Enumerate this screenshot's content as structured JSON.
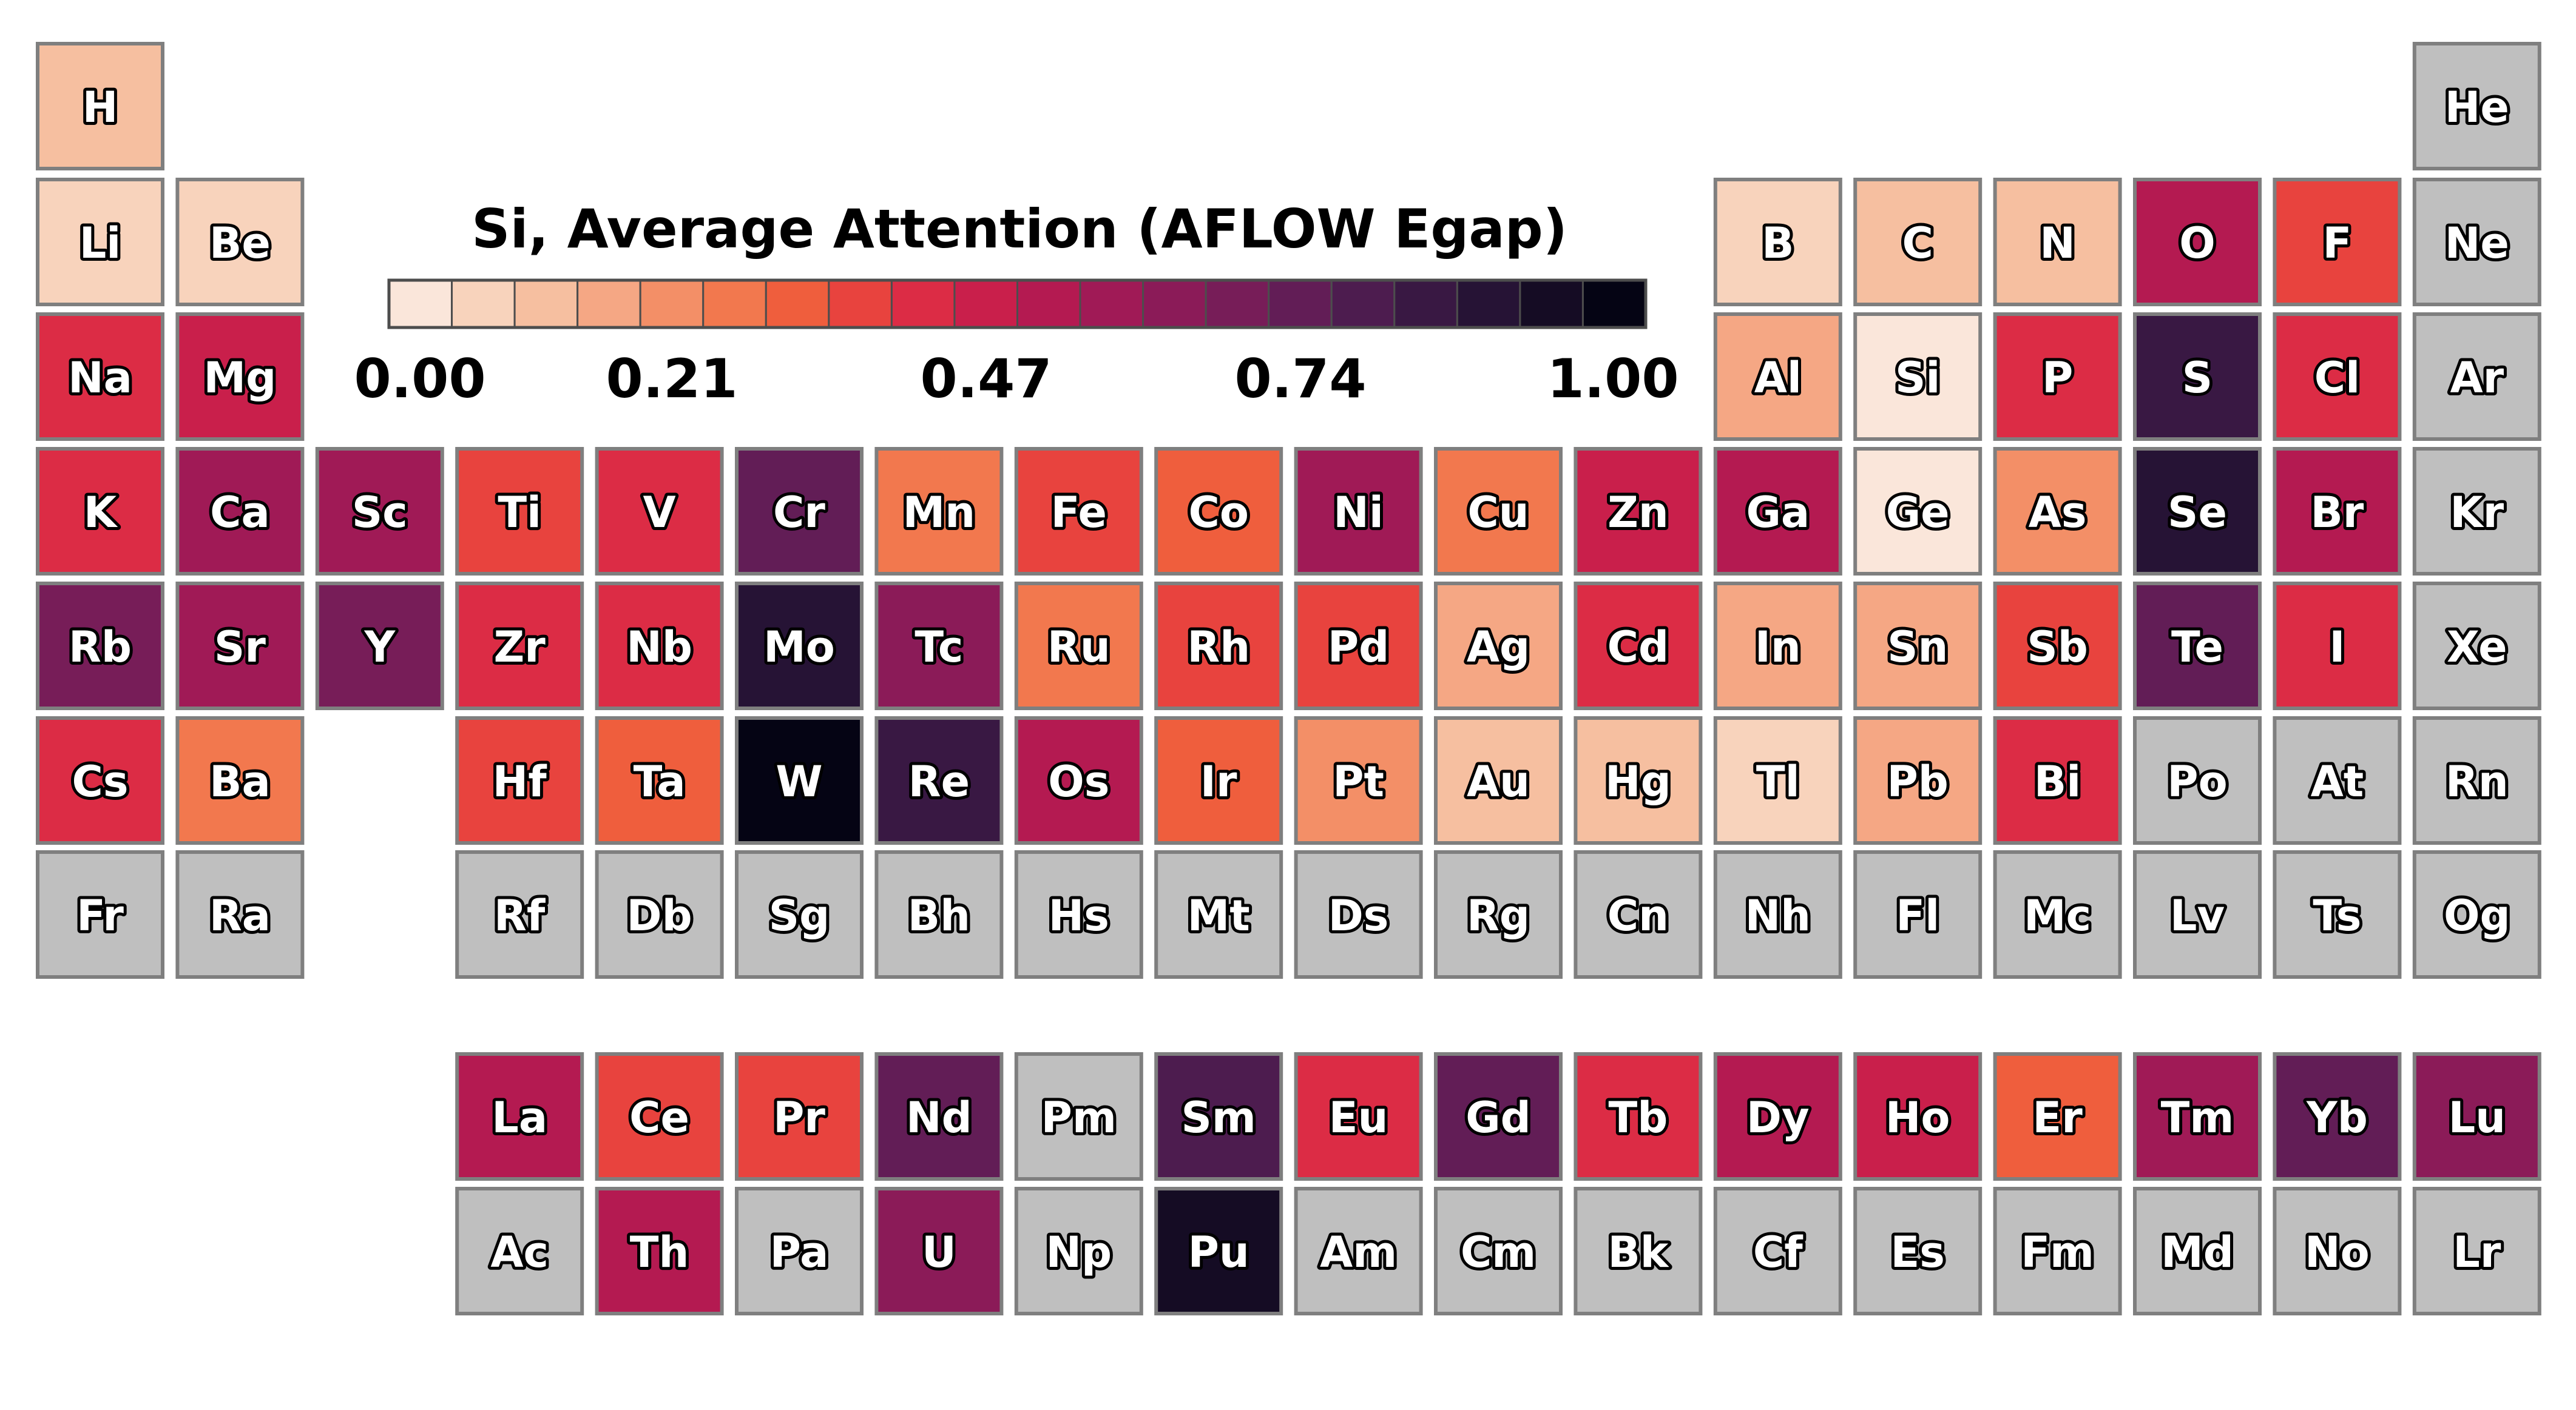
{
  "chart_data": {
    "type": "heatmap",
    "title": "Si, Average Attention (AFLOW Egap)",
    "colorbar": {
      "ticks": [
        "0.00",
        "0.21",
        "0.47",
        "0.74",
        "1.00"
      ],
      "tick_values": [
        0.0,
        0.21,
        0.47,
        0.74,
        1.0
      ],
      "range": [
        0.0,
        1.0
      ],
      "colors": [
        "#fae6da",
        "#f8d3bc",
        "#f6bfa0",
        "#f5a784",
        "#f38f67",
        "#f2784e",
        "#ef5e3d",
        "#e8433e",
        "#dc2c45",
        "#c91f4b",
        "#b41a51",
        "#a01a56",
        "#8b1b58",
        "#771d58",
        "#621d56",
        "#4d1c4f",
        "#391843",
        "#261335",
        "#150c24",
        "#050414"
      ]
    },
    "no_data_color": "#bfbfbf",
    "cells": [
      {
        "symbol": "H",
        "row": 1,
        "col": 1,
        "value": 0.12
      },
      {
        "symbol": "He",
        "row": 1,
        "col": 18,
        "value": null
      },
      {
        "symbol": "Li",
        "row": 2,
        "col": 1,
        "value": 0.06
      },
      {
        "symbol": "Be",
        "row": 2,
        "col": 2,
        "value": 0.05
      },
      {
        "symbol": "B",
        "row": 2,
        "col": 13,
        "value": 0.09
      },
      {
        "symbol": "C",
        "row": 2,
        "col": 14,
        "value": 0.14
      },
      {
        "symbol": "N",
        "row": 2,
        "col": 15,
        "value": 0.12
      },
      {
        "symbol": "O",
        "row": 2,
        "col": 16,
        "value": 0.5
      },
      {
        "symbol": "F",
        "row": 2,
        "col": 17,
        "value": 0.36
      },
      {
        "symbol": "Ne",
        "row": 2,
        "col": 18,
        "value": null
      },
      {
        "symbol": "Na",
        "row": 3,
        "col": 1,
        "value": 0.42
      },
      {
        "symbol": "Mg",
        "row": 3,
        "col": 2,
        "value": 0.45
      },
      {
        "symbol": "Al",
        "row": 3,
        "col": 13,
        "value": 0.18
      },
      {
        "symbol": "Si",
        "row": 3,
        "col": 14,
        "value": 0.02
      },
      {
        "symbol": "P",
        "row": 3,
        "col": 15,
        "value": 0.42
      },
      {
        "symbol": "S",
        "row": 3,
        "col": 16,
        "value": 0.8
      },
      {
        "symbol": "Cl",
        "row": 3,
        "col": 17,
        "value": 0.43
      },
      {
        "symbol": "Ar",
        "row": 3,
        "col": 18,
        "value": null
      },
      {
        "symbol": "K",
        "row": 4,
        "col": 1,
        "value": 0.43
      },
      {
        "symbol": "Ca",
        "row": 4,
        "col": 2,
        "value": 0.55
      },
      {
        "symbol": "Sc",
        "row": 4,
        "col": 3,
        "value": 0.58
      },
      {
        "symbol": "Ti",
        "row": 4,
        "col": 4,
        "value": 0.36
      },
      {
        "symbol": "V",
        "row": 4,
        "col": 5,
        "value": 0.43
      },
      {
        "symbol": "Cr",
        "row": 4,
        "col": 6,
        "value": 0.7
      },
      {
        "symbol": "Mn",
        "row": 4,
        "col": 7,
        "value": 0.27
      },
      {
        "symbol": "Fe",
        "row": 4,
        "col": 8,
        "value": 0.37
      },
      {
        "symbol": "Co",
        "row": 4,
        "col": 9,
        "value": 0.31
      },
      {
        "symbol": "Ni",
        "row": 4,
        "col": 10,
        "value": 0.58
      },
      {
        "symbol": "Cu",
        "row": 4,
        "col": 11,
        "value": 0.28
      },
      {
        "symbol": "Zn",
        "row": 4,
        "col": 12,
        "value": 0.48
      },
      {
        "symbol": "Ga",
        "row": 4,
        "col": 13,
        "value": 0.51
      },
      {
        "symbol": "Ge",
        "row": 4,
        "col": 14,
        "value": 0.03
      },
      {
        "symbol": "As",
        "row": 4,
        "col": 15,
        "value": 0.22
      },
      {
        "symbol": "Se",
        "row": 4,
        "col": 16,
        "value": 0.88
      },
      {
        "symbol": "Br",
        "row": 4,
        "col": 17,
        "value": 0.52
      },
      {
        "symbol": "Kr",
        "row": 4,
        "col": 18,
        "value": null
      },
      {
        "symbol": "Rb",
        "row": 5,
        "col": 1,
        "value": 0.66
      },
      {
        "symbol": "Sr",
        "row": 5,
        "col": 2,
        "value": 0.56
      },
      {
        "symbol": "Y",
        "row": 5,
        "col": 3,
        "value": 0.68
      },
      {
        "symbol": "Zr",
        "row": 5,
        "col": 4,
        "value": 0.44
      },
      {
        "symbol": "Nb",
        "row": 5,
        "col": 5,
        "value": 0.44
      },
      {
        "symbol": "Mo",
        "row": 5,
        "col": 6,
        "value": 0.87
      },
      {
        "symbol": "Tc",
        "row": 5,
        "col": 7,
        "value": 0.61
      },
      {
        "symbol": "Ru",
        "row": 5,
        "col": 8,
        "value": 0.29
      },
      {
        "symbol": "Rh",
        "row": 5,
        "col": 9,
        "value": 0.39
      },
      {
        "symbol": "Pd",
        "row": 5,
        "col": 10,
        "value": 0.38
      },
      {
        "symbol": "Ag",
        "row": 5,
        "col": 11,
        "value": 0.16
      },
      {
        "symbol": "Cd",
        "row": 5,
        "col": 12,
        "value": 0.44
      },
      {
        "symbol": "In",
        "row": 5,
        "col": 13,
        "value": 0.18
      },
      {
        "symbol": "Sn",
        "row": 5,
        "col": 14,
        "value": 0.15
      },
      {
        "symbol": "Sb",
        "row": 5,
        "col": 15,
        "value": 0.38
      },
      {
        "symbol": "Te",
        "row": 5,
        "col": 16,
        "value": 0.7
      },
      {
        "symbol": "I",
        "row": 5,
        "col": 17,
        "value": 0.43
      },
      {
        "symbol": "Xe",
        "row": 5,
        "col": 18,
        "value": null
      },
      {
        "symbol": "Cs",
        "row": 6,
        "col": 1,
        "value": 0.43
      },
      {
        "symbol": "Ba",
        "row": 6,
        "col": 2,
        "value": 0.28
      },
      {
        "symbol": "Hf",
        "row": 6,
        "col": 4,
        "value": 0.35
      },
      {
        "symbol": "Ta",
        "row": 6,
        "col": 5,
        "value": 0.34
      },
      {
        "symbol": "W",
        "row": 6,
        "col": 6,
        "value": 1.0
      },
      {
        "symbol": "Re",
        "row": 6,
        "col": 7,
        "value": 0.84
      },
      {
        "symbol": "Os",
        "row": 6,
        "col": 8,
        "value": 0.52
      },
      {
        "symbol": "Ir",
        "row": 6,
        "col": 9,
        "value": 0.32
      },
      {
        "symbol": "Pt",
        "row": 6,
        "col": 10,
        "value": 0.24
      },
      {
        "symbol": "Au",
        "row": 6,
        "col": 11,
        "value": 0.14
      },
      {
        "symbol": "Hg",
        "row": 6,
        "col": 12,
        "value": 0.12
      },
      {
        "symbol": "Tl",
        "row": 6,
        "col": 13,
        "value": 0.05
      },
      {
        "symbol": "Pb",
        "row": 6,
        "col": 14,
        "value": 0.15
      },
      {
        "symbol": "Bi",
        "row": 6,
        "col": 15,
        "value": 0.42
      },
      {
        "symbol": "Po",
        "row": 6,
        "col": 16,
        "value": null
      },
      {
        "symbol": "At",
        "row": 6,
        "col": 17,
        "value": null
      },
      {
        "symbol": "Rn",
        "row": 6,
        "col": 18,
        "value": null
      },
      {
        "symbol": "Fr",
        "row": 7,
        "col": 1,
        "value": null
      },
      {
        "symbol": "Ra",
        "row": 7,
        "col": 2,
        "value": null
      },
      {
        "symbol": "Rf",
        "row": 7,
        "col": 4,
        "value": null
      },
      {
        "symbol": "Db",
        "row": 7,
        "col": 5,
        "value": null
      },
      {
        "symbol": "Sg",
        "row": 7,
        "col": 6,
        "value": null
      },
      {
        "symbol": "Bh",
        "row": 7,
        "col": 7,
        "value": null
      },
      {
        "symbol": "Hs",
        "row": 7,
        "col": 8,
        "value": null
      },
      {
        "symbol": "Mt",
        "row": 7,
        "col": 9,
        "value": null
      },
      {
        "symbol": "Ds",
        "row": 7,
        "col": 10,
        "value": null
      },
      {
        "symbol": "Rg",
        "row": 7,
        "col": 11,
        "value": null
      },
      {
        "symbol": "Cn",
        "row": 7,
        "col": 12,
        "value": null
      },
      {
        "symbol": "Nh",
        "row": 7,
        "col": 13,
        "value": null
      },
      {
        "symbol": "Fl",
        "row": 7,
        "col": 14,
        "value": null
      },
      {
        "symbol": "Mc",
        "row": 7,
        "col": 15,
        "value": null
      },
      {
        "symbol": "Lv",
        "row": 7,
        "col": 16,
        "value": null
      },
      {
        "symbol": "Ts",
        "row": 7,
        "col": 17,
        "value": null
      },
      {
        "symbol": "Og",
        "row": 7,
        "col": 18,
        "value": null
      },
      {
        "symbol": "La",
        "row": 9,
        "col": 4,
        "value": 0.52
      },
      {
        "symbol": "Ce",
        "row": 9,
        "col": 5,
        "value": 0.37
      },
      {
        "symbol": "Pr",
        "row": 9,
        "col": 6,
        "value": 0.37
      },
      {
        "symbol": "Nd",
        "row": 9,
        "col": 7,
        "value": 0.72
      },
      {
        "symbol": "Pm",
        "row": 9,
        "col": 8,
        "value": null
      },
      {
        "symbol": "Sm",
        "row": 9,
        "col": 9,
        "value": 0.76
      },
      {
        "symbol": "Eu",
        "row": 9,
        "col": 10,
        "value": 0.41
      },
      {
        "symbol": "Gd",
        "row": 9,
        "col": 11,
        "value": 0.7
      },
      {
        "symbol": "Tb",
        "row": 9,
        "col": 12,
        "value": 0.43
      },
      {
        "symbol": "Dy",
        "row": 9,
        "col": 13,
        "value": 0.53
      },
      {
        "symbol": "Ho",
        "row": 9,
        "col": 14,
        "value": 0.45
      },
      {
        "symbol": "Er",
        "row": 9,
        "col": 15,
        "value": 0.3
      },
      {
        "symbol": "Tm",
        "row": 9,
        "col": 16,
        "value": 0.58
      },
      {
        "symbol": "Yb",
        "row": 9,
        "col": 17,
        "value": 0.74
      },
      {
        "symbol": "Lu",
        "row": 9,
        "col": 18,
        "value": 0.64
      },
      {
        "symbol": "Ac",
        "row": 10,
        "col": 4,
        "value": null
      },
      {
        "symbol": "Th",
        "row": 10,
        "col": 5,
        "value": 0.52
      },
      {
        "symbol": "Pa",
        "row": 10,
        "col": 6,
        "value": null
      },
      {
        "symbol": "U",
        "row": 10,
        "col": 7,
        "value": 0.6
      },
      {
        "symbol": "Np",
        "row": 10,
        "col": 8,
        "value": null
      },
      {
        "symbol": "Pu",
        "row": 10,
        "col": 9,
        "value": 0.93
      },
      {
        "symbol": "Am",
        "row": 10,
        "col": 10,
        "value": null
      },
      {
        "symbol": "Cm",
        "row": 10,
        "col": 11,
        "value": null
      },
      {
        "symbol": "Bk",
        "row": 10,
        "col": 12,
        "value": null
      },
      {
        "symbol": "Cf",
        "row": 10,
        "col": 13,
        "value": null
      },
      {
        "symbol": "Es",
        "row": 10,
        "col": 14,
        "value": null
      },
      {
        "symbol": "Fm",
        "row": 10,
        "col": 15,
        "value": null
      },
      {
        "symbol": "Md",
        "row": 10,
        "col": 16,
        "value": null
      },
      {
        "symbol": "No",
        "row": 10,
        "col": 17,
        "value": null
      },
      {
        "symbol": "Lr",
        "row": 10,
        "col": 18,
        "value": null
      }
    ]
  }
}
